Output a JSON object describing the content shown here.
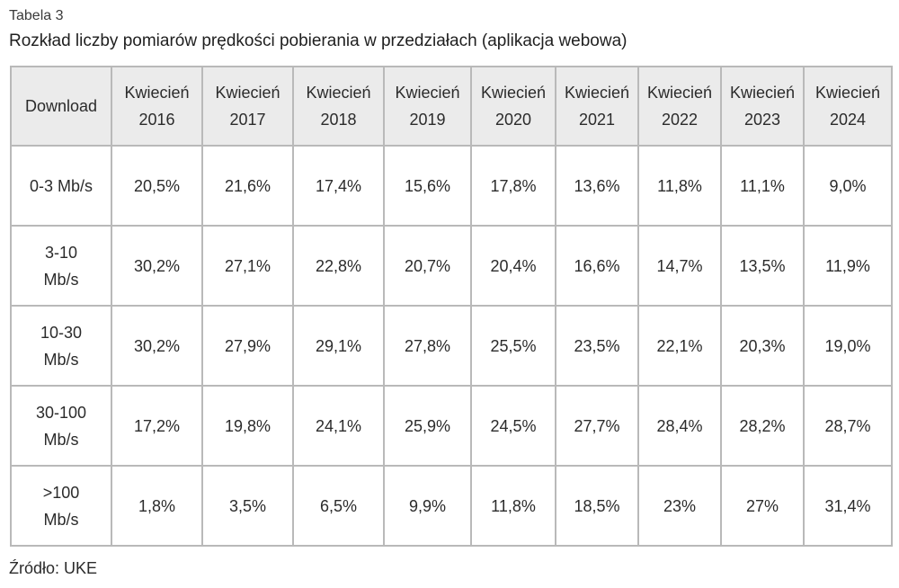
{
  "table_label": "Tabela 3",
  "title": "Rozkład liczby pomiarów prędkości pobierania w przedziałach (aplikacja webowa)",
  "header": {
    "first": "Download",
    "columns": [
      {
        "month": "Kwiecień",
        "year": "2016"
      },
      {
        "month": "Kwiecień",
        "year": "2017"
      },
      {
        "month": "Kwiecień",
        "year": "2018"
      },
      {
        "month": "Kwiecień",
        "year": "2019"
      },
      {
        "month": "Kwiecień",
        "year": "2020"
      },
      {
        "month": "Kwiecień",
        "year": "2021"
      },
      {
        "month": "Kwiecień",
        "year": "2022"
      },
      {
        "month": "Kwiecień",
        "year": "2023"
      },
      {
        "month": "Kwiecień",
        "year": "2024"
      }
    ]
  },
  "rows": [
    {
      "label": [
        "0-3 Mb/s"
      ],
      "values": [
        "20,5%",
        "21,6%",
        "17,4%",
        "15,6%",
        "17,8%",
        "13,6%",
        "11,8%",
        "11,1%",
        "9,0%"
      ]
    },
    {
      "label": [
        "3-10",
        "Mb/s"
      ],
      "values": [
        "30,2%",
        "27,1%",
        "22,8%",
        "20,7%",
        "20,4%",
        "16,6%",
        "14,7%",
        "13,5%",
        "11,9%"
      ]
    },
    {
      "label": [
        "10-30",
        "Mb/s"
      ],
      "values": [
        "30,2%",
        "27,9%",
        "29,1%",
        "27,8%",
        "25,5%",
        "23,5%",
        "22,1%",
        "20,3%",
        "19,0%"
      ]
    },
    {
      "label": [
        "30-100",
        "Mb/s"
      ],
      "values": [
        "17,2%",
        "19,8%",
        "24,1%",
        "25,9%",
        "24,5%",
        "27,7%",
        "28,4%",
        "28,2%",
        "28,7%"
      ]
    },
    {
      "label": [
        ">100",
        "Mb/s"
      ],
      "values": [
        "1,8%",
        "3,5%",
        "6,5%",
        "9,9%",
        "11,8%",
        "18,5%",
        "23%",
        "27%",
        "31,4%"
      ]
    }
  ],
  "source": "Źródło: UKE",
  "colors": {
    "header_bg": "#ebebeb",
    "border": "#b9b9b9",
    "text": "#2b2b2b"
  }
}
